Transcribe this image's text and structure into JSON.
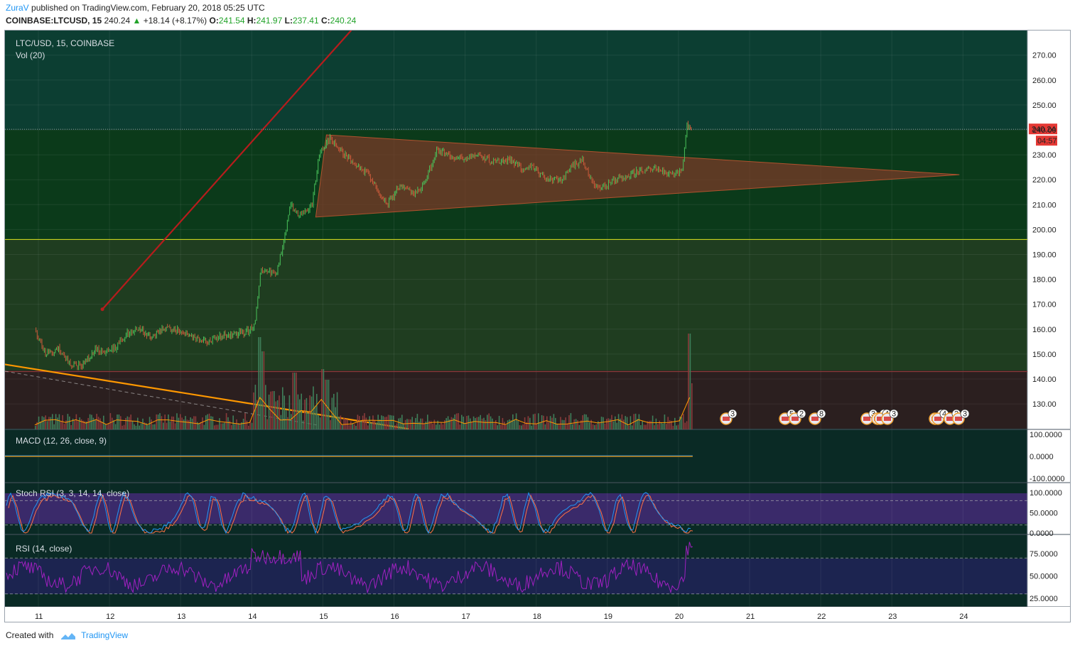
{
  "header": {
    "author": "ZuraV",
    "published": "published on TradingView.com, February 20, 2018 05:25 UTC",
    "symbol": "COINBASE:LTCUSD, 15",
    "last": "240.24",
    "change": "+18.14 (+8.17%)",
    "open_label": "O:",
    "open": "241.54",
    "high_label": "H:",
    "high": "241.97",
    "low_label": "L:",
    "low": "237.41",
    "close_label": "C:",
    "close": "240.24"
  },
  "panes": {
    "main_title": "LTC/USD, 15, COINBASE",
    "vol_title": "Vol (20)",
    "macd_title": "MACD (12, 26, close, 9)",
    "stoch_title": "Stoch RSI (3, 3, 14, 14, close)",
    "rsi_title": "RSI (14, close)"
  },
  "price_badge": {
    "value": "240.24",
    "timer": "04:57"
  },
  "footer": {
    "created_with": "Created with",
    "brand": "TradingView"
  },
  "colors": {
    "accent": "#2196f3",
    "up": "#22a32a",
    "price_badge": "#e53935",
    "triangle_fill": "#7a3b28",
    "resistance_line": "#b71c1c",
    "support_line": "#ff9800",
    "stoch_k": "#2196f3",
    "stoch_d": "#ff7043",
    "rsi_line": "#a020c0"
  },
  "chart_data": [
    {
      "type": "candlestick",
      "title": "LTC/USD, 15, COINBASE",
      "x_ticks": [
        "11",
        "12",
        "13",
        "14",
        "15",
        "16",
        "17",
        "18",
        "19",
        "20",
        "21",
        "22",
        "23",
        "24"
      ],
      "y_ticks": [
        "270.00",
        "260.00",
        "250.00",
        "240.00",
        "230.00",
        "220.00",
        "210.00",
        "200.00",
        "190.00",
        "180.00",
        "170.00",
        "160.00",
        "150.00",
        "140.00",
        "130.00"
      ],
      "ylim": [
        121,
        276
      ],
      "price_path": [
        [
          10.95,
          160
        ],
        [
          11.1,
          150
        ],
        [
          11.3,
          152
        ],
        [
          11.45,
          146
        ],
        [
          11.6,
          145
        ],
        [
          11.8,
          152
        ],
        [
          11.95,
          151
        ],
        [
          12.1,
          153
        ],
        [
          12.25,
          158
        ],
        [
          12.4,
          160
        ],
        [
          12.6,
          157
        ],
        [
          12.8,
          161
        ],
        [
          13.0,
          159
        ],
        [
          13.2,
          157
        ],
        [
          13.4,
          155
        ],
        [
          13.55,
          157
        ],
        [
          13.75,
          158
        ],
        [
          13.95,
          159
        ],
        [
          14.05,
          163
        ],
        [
          14.12,
          183
        ],
        [
          14.25,
          183
        ],
        [
          14.35,
          182
        ],
        [
          14.45,
          196
        ],
        [
          14.55,
          210
        ],
        [
          14.65,
          206
        ],
        [
          14.75,
          208
        ],
        [
          14.85,
          210
        ],
        [
          14.95,
          230
        ],
        [
          15.1,
          237
        ],
        [
          15.3,
          230
        ],
        [
          15.5,
          226
        ],
        [
          15.7,
          220
        ],
        [
          15.9,
          210
        ],
        [
          16.1,
          218
        ],
        [
          16.3,
          214
        ],
        [
          16.45,
          220
        ],
        [
          16.6,
          232
        ],
        [
          16.8,
          229
        ],
        [
          17.0,
          229
        ],
        [
          17.2,
          230
        ],
        [
          17.4,
          227
        ],
        [
          17.6,
          228
        ],
        [
          17.8,
          225
        ],
        [
          17.95,
          225
        ],
        [
          18.15,
          220
        ],
        [
          18.35,
          220
        ],
        [
          18.5,
          225
        ],
        [
          18.65,
          228
        ],
        [
          18.8,
          218
        ],
        [
          18.95,
          217
        ],
        [
          19.1,
          220
        ],
        [
          19.3,
          222
        ],
        [
          19.5,
          224
        ],
        [
          19.7,
          224
        ],
        [
          19.9,
          222
        ],
        [
          20.05,
          223
        ],
        [
          20.12,
          242
        ],
        [
          20.18,
          240
        ]
      ],
      "triangle": {
        "vertices": [
          [
            15.05,
            238
          ],
          [
            14.9,
            205
          ],
          [
            23.95,
            222
          ]
        ]
      },
      "horizontal_levels": [
        196,
        143
      ],
      "trendlines": [
        {
          "name": "",
          "points": [
            [
              11.9,
              168
            ],
            [
              15.4,
              280
            ]
          ]
        },
        {
          "name": "",
          "points": [
            [
              10.5,
              146
            ],
            [
              16.2,
              120
            ]
          ]
        }
      ],
      "event_badges": [
        "3",
        "5",
        "2",
        "8",
        "3",
        "1",
        "4",
        "3",
        "2",
        "4",
        "2",
        "3"
      ]
    },
    {
      "type": "line",
      "title": "MACD (12, 26, close, 9)",
      "y_ticks": [
        "100.0000",
        "0.0000",
        "-100.0000"
      ],
      "ylim": [
        -110,
        110
      ],
      "series": [
        {
          "values": [
            0,
            0,
            0,
            0,
            0,
            0,
            0,
            0,
            0,
            0
          ]
        }
      ]
    },
    {
      "type": "line",
      "title": "Stoch RSI (3, 3, 14, 14, close)",
      "y_ticks": [
        "100.0000",
        "50.0000",
        "0.0000"
      ],
      "ylim": [
        0,
        100
      ],
      "bands": [
        20,
        80
      ]
    },
    {
      "type": "line",
      "title": "RSI (14, close)",
      "y_ticks": [
        "75.0000",
        "50.0000",
        "25.0000"
      ],
      "ylim": [
        20,
        90
      ],
      "bands": [
        30,
        70
      ]
    }
  ]
}
